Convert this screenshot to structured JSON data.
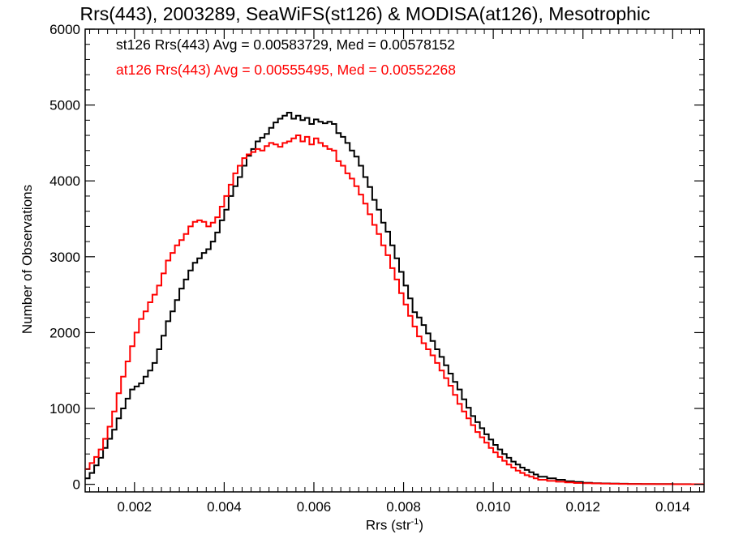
{
  "chart_data": {
    "type": "line",
    "title": "Rrs(443), 2003289, SeaWiFS(st126) & MODISA(at126), Mesotrophic",
    "xlabel": {
      "text": "Rrs (str",
      "sup": "-1",
      "close": ")"
    },
    "ylabel": "Number of Observations",
    "xlim": [
      0.0009,
      0.0147
    ],
    "ylim": [
      -100,
      6000
    ],
    "xticks": [
      "0.002",
      "0.004",
      "0.006",
      "0.008",
      "0.010",
      "0.012",
      "0.014"
    ],
    "yticks": [
      "0",
      "1000",
      "2000",
      "3000",
      "4000",
      "5000",
      "6000"
    ],
    "legend_position": "top-left",
    "legend": [
      "st126 Rrs(443) Avg = 0.00583729, Med = 0.00578152",
      "at126 Rrs(443) Avg = 0.00555495, Med = 0.00552268"
    ],
    "series": [
      {
        "color": "#000000",
        "x": [
          0.0009,
          0.001,
          0.0011,
          0.0012,
          0.0013,
          0.0014,
          0.0015,
          0.0016,
          0.0017,
          0.0018,
          0.0019,
          0.002,
          0.0021,
          0.0022,
          0.0023,
          0.0024,
          0.0025,
          0.0026,
          0.0027,
          0.0028,
          0.0029,
          0.003,
          0.0031,
          0.0032,
          0.0033,
          0.0034,
          0.0035,
          0.0036,
          0.0037,
          0.0038,
          0.0039,
          0.004,
          0.0041,
          0.0042,
          0.0043,
          0.0044,
          0.0045,
          0.0046,
          0.0047,
          0.0048,
          0.0049,
          0.005,
          0.0051,
          0.0052,
          0.0053,
          0.0054,
          0.0055,
          0.0056,
          0.0057,
          0.0058,
          0.0059,
          0.006,
          0.0061,
          0.0062,
          0.0063,
          0.0064,
          0.0065,
          0.0066,
          0.0067,
          0.0068,
          0.0069,
          0.007,
          0.0071,
          0.0072,
          0.0073,
          0.0074,
          0.0075,
          0.0076,
          0.0077,
          0.0078,
          0.0079,
          0.008,
          0.0081,
          0.0082,
          0.0083,
          0.0084,
          0.0085,
          0.0086,
          0.0087,
          0.0088,
          0.0089,
          0.009,
          0.0091,
          0.0092,
          0.0093,
          0.0094,
          0.0095,
          0.0096,
          0.0097,
          0.0098,
          0.0099,
          0.01,
          0.0101,
          0.0102,
          0.0103,
          0.0104,
          0.0105,
          0.0106,
          0.0107,
          0.0108,
          0.0109,
          0.011,
          0.0112,
          0.0114,
          0.0116,
          0.0118,
          0.012,
          0.0122,
          0.0124,
          0.0126,
          0.0128,
          0.013,
          0.0133,
          0.0136,
          0.014,
          0.0144,
          0.0147
        ],
        "y": [
          80,
          150,
          250,
          350,
          480,
          600,
          720,
          870,
          1000,
          1130,
          1250,
          1290,
          1330,
          1420,
          1500,
          1600,
          1780,
          1960,
          2150,
          2280,
          2430,
          2580,
          2700,
          2820,
          2920,
          2980,
          3050,
          3100,
          3200,
          3320,
          3480,
          3620,
          3800,
          3930,
          4050,
          4200,
          4330,
          4420,
          4520,
          4570,
          4620,
          4700,
          4770,
          4820,
          4860,
          4900,
          4820,
          4860,
          4800,
          4830,
          4750,
          4810,
          4780,
          4760,
          4780,
          4750,
          4630,
          4580,
          4500,
          4400,
          4320,
          4200,
          4050,
          3920,
          3750,
          3620,
          3450,
          3330,
          3150,
          2980,
          2800,
          2620,
          2450,
          2270,
          2200,
          2100,
          1990,
          1890,
          1780,
          1680,
          1570,
          1460,
          1350,
          1250,
          1120,
          1010,
          900,
          820,
          740,
          660,
          590,
          520,
          460,
          400,
          350,
          300,
          260,
          220,
          190,
          160,
          130,
          100,
          80,
          60,
          40,
          30,
          20,
          15,
          12,
          10,
          8,
          6,
          5,
          4,
          3,
          2,
          1
        ]
      },
      {
        "color": "#ff0000",
        "x": [
          0.0009,
          0.001,
          0.0011,
          0.0012,
          0.0013,
          0.0014,
          0.0015,
          0.0016,
          0.0017,
          0.0018,
          0.0019,
          0.002,
          0.0021,
          0.0022,
          0.0023,
          0.0024,
          0.0025,
          0.0026,
          0.0027,
          0.0028,
          0.0029,
          0.003,
          0.0031,
          0.0032,
          0.0033,
          0.0034,
          0.0035,
          0.0036,
          0.0037,
          0.0038,
          0.0039,
          0.004,
          0.0041,
          0.0042,
          0.0043,
          0.0044,
          0.0045,
          0.0046,
          0.0047,
          0.0048,
          0.0049,
          0.005,
          0.0051,
          0.0052,
          0.0053,
          0.0054,
          0.0055,
          0.0056,
          0.0057,
          0.0058,
          0.0059,
          0.006,
          0.0061,
          0.0062,
          0.0063,
          0.0064,
          0.0065,
          0.0066,
          0.0067,
          0.0068,
          0.0069,
          0.007,
          0.0071,
          0.0072,
          0.0073,
          0.0074,
          0.0075,
          0.0076,
          0.0077,
          0.0078,
          0.0079,
          0.008,
          0.0081,
          0.0082,
          0.0083,
          0.0084,
          0.0085,
          0.0086,
          0.0087,
          0.0088,
          0.0089,
          0.009,
          0.0091,
          0.0092,
          0.0093,
          0.0094,
          0.0095,
          0.0096,
          0.0097,
          0.0098,
          0.0099,
          0.01,
          0.0101,
          0.0102,
          0.0103,
          0.0104,
          0.0105,
          0.0106,
          0.0107,
          0.0108,
          0.0109,
          0.011,
          0.0112,
          0.0114,
          0.0116,
          0.0118,
          0.012,
          0.0122,
          0.0124,
          0.0126,
          0.0128,
          0.013,
          0.0133,
          0.0136,
          0.014,
          0.0144,
          0.0147
        ],
        "y": [
          200,
          280,
          360,
          460,
          600,
          760,
          960,
          1200,
          1420,
          1620,
          1820,
          2000,
          2180,
          2280,
          2400,
          2500,
          2620,
          2780,
          2950,
          3050,
          3150,
          3220,
          3300,
          3400,
          3460,
          3480,
          3460,
          3400,
          3450,
          3520,
          3660,
          3800,
          3950,
          4100,
          4200,
          4300,
          4350,
          4380,
          4420,
          4400,
          4460,
          4500,
          4480,
          4450,
          4500,
          4520,
          4560,
          4600,
          4520,
          4580,
          4480,
          4560,
          4500,
          4460,
          4420,
          4400,
          4260,
          4200,
          4100,
          4030,
          3930,
          3820,
          3700,
          3560,
          3420,
          3300,
          3150,
          3020,
          2850,
          2700,
          2520,
          2370,
          2220,
          2080,
          1950,
          1860,
          1780,
          1700,
          1600,
          1500,
          1400,
          1300,
          1180,
          1060,
          960,
          870,
          780,
          690,
          620,
          550,
          480,
          420,
          360,
          310,
          260,
          220,
          180,
          150,
          120,
          100,
          80,
          60,
          45,
          35,
          25,
          18,
          14,
          12,
          10,
          8,
          6,
          5,
          4,
          3,
          2,
          1,
          1
        ]
      }
    ]
  }
}
